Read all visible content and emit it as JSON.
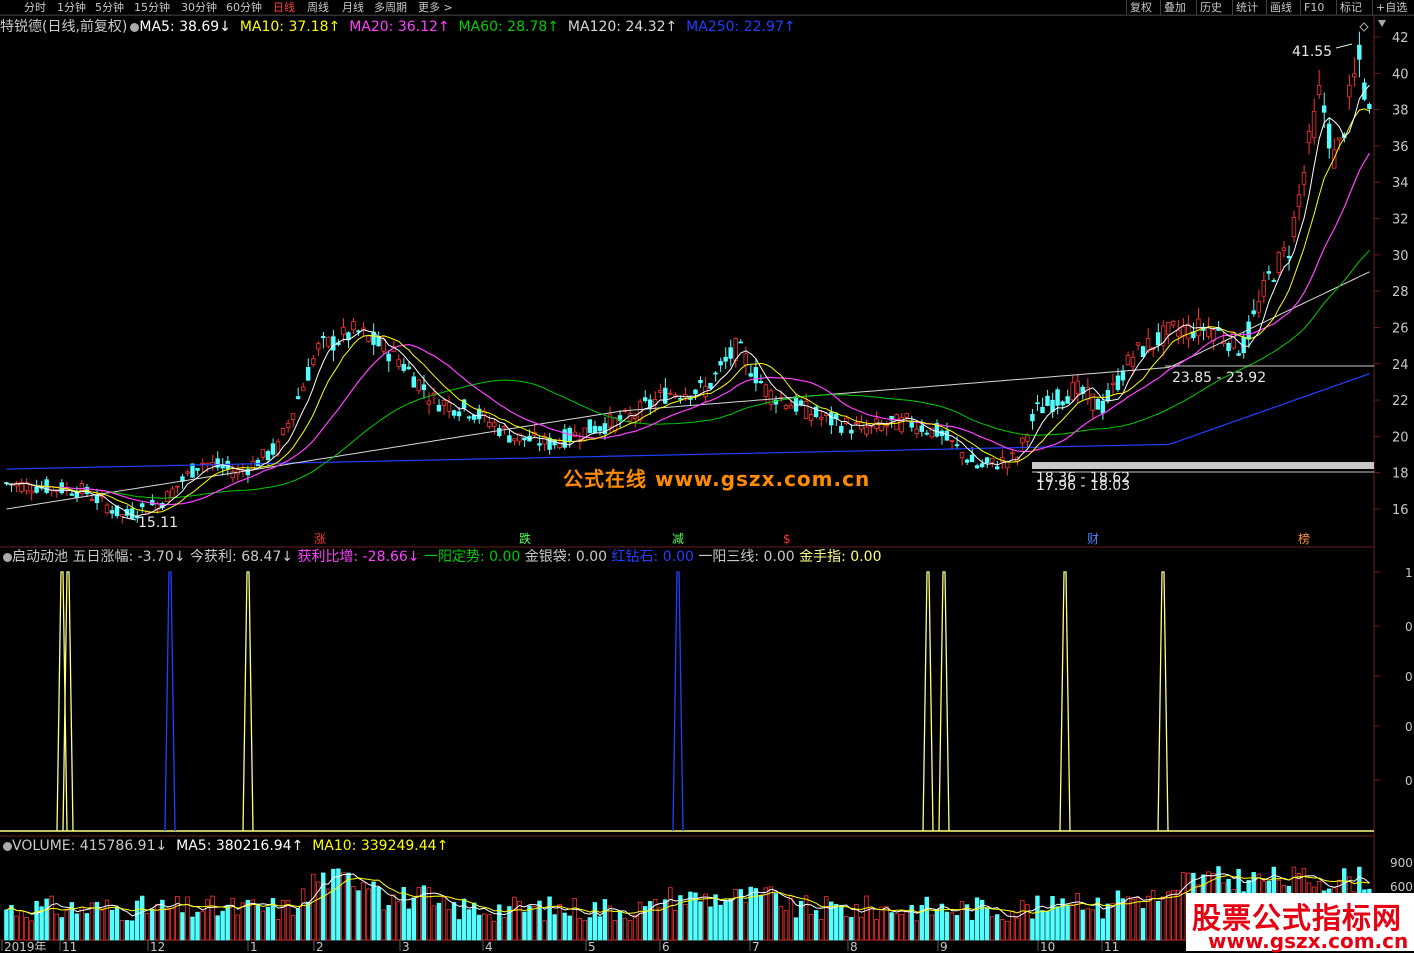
{
  "toolbar": {
    "periods": [
      "分时",
      "1分钟",
      "5分钟",
      "15分钟",
      "30分钟",
      "60分钟",
      "日线",
      "周线",
      "月线",
      "多周期",
      "更多 >"
    ],
    "active_period": "日线",
    "right_buttons": [
      "复权",
      "叠加",
      "历史",
      "统计",
      "画线",
      "F10",
      "标记",
      "+自选"
    ]
  },
  "main_legend": {
    "title": "特锐德(日线,前复权)",
    "ma5": "MA5: 38.69↓",
    "ma10": "MA10: 37.18↑",
    "ma20": "MA20: 36.12↑",
    "ma60": "MA60: 28.78↑",
    "ma120": "MA120: 24.32↑",
    "ma250": "MA250: 22.97↑"
  },
  "colors": {
    "up": "#ff3232",
    "down": "#54ffff",
    "ma5": "#ffffff",
    "ma10": "#ffff00",
    "ma20": "#ff40ff",
    "ma60": "#00cc00",
    "ma120": "#d8d8d8",
    "ma250": "#2040ff",
    "axis_border": "#6a1e1e"
  },
  "price_axis": [
    "42",
    "40",
    "38",
    "36",
    "34",
    "32",
    "30",
    "28",
    "26",
    "24",
    "22",
    "20",
    "18",
    "16"
  ],
  "annotations": {
    "high": "41.55",
    "low": "15.11",
    "range1": "23.85 - 23.92",
    "range2": "18.36 - 18.62",
    "range3": "17.96 - 18.03",
    "watermark_center": "公式在线  www.gszx.com.cn"
  },
  "event_markers": [
    "涨",
    "跌",
    "减",
    "$",
    "财",
    "榜"
  ],
  "indicator_legend": {
    "name": "启动动池",
    "five_day": "五日涨幅: -3.70↓",
    "profit_today": "今获利: 68.47↓",
    "profit_ratio": "获利比增: -28.66↓",
    "yiyang": "一阳定势: 0.00",
    "jinyindai": "金银袋: 0.00",
    "hongzuanshi": "红钻石: 0.00",
    "yiyang3": "一阳三线: 0.00",
    "jinshouzhi": "金手指: 0.00"
  },
  "indicator_axis": [
    "1",
    "0",
    "0",
    "0",
    "0"
  ],
  "volume_legend": {
    "volume": "VOLUME: 415786.91↓",
    "ma5": "MA5: 380216.94↑",
    "ma10": "MA10: 339249.44↑"
  },
  "volume_axis": [
    "900",
    "600"
  ],
  "date_axis": [
    "2019年",
    "11",
    "12",
    "1",
    "2",
    "3",
    "4",
    "5",
    "6",
    "7",
    "8",
    "9",
    "10",
    "11"
  ],
  "watermark_corner": {
    "line1": "股票公式指标网",
    "line2": "www.gszx.com.cn"
  }
}
